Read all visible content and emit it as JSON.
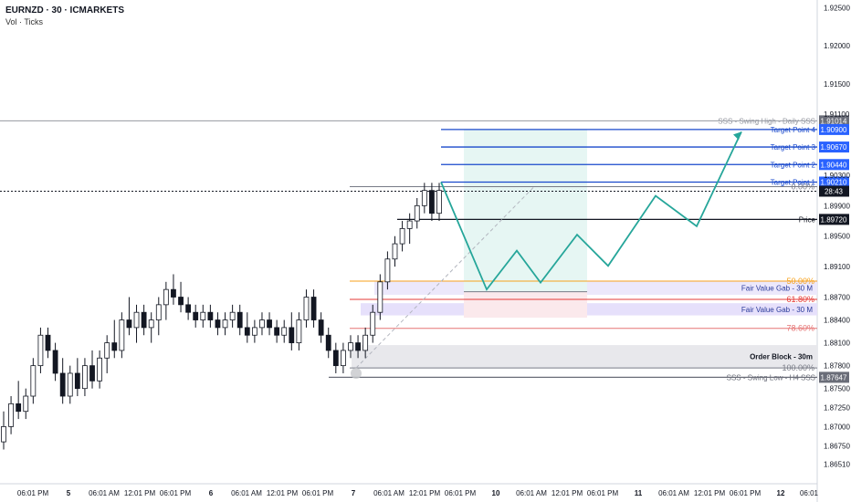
{
  "header": {
    "symbol_line": "EURNZD · 30 · ICMARKETS",
    "indicator_line": "Vol · Ticks"
  },
  "chart_data": {
    "type": "line",
    "title": "EURNZD · 30 · ICMARKETS",
    "ylim": [
      1.8625,
      1.926
    ],
    "price_ticks": [
      "1.92500",
      "1.92000",
      "1.91500",
      "1.91100",
      "1.90300",
      "1.89900",
      "1.89500",
      "1.89100",
      "1.88700",
      "1.88400",
      "1.88100",
      "1.87800",
      "1.87500",
      "1.87250",
      "1.87000",
      "1.86750",
      "1.86510"
    ],
    "time_ticks": [
      "06:01 PM",
      "5",
      "06:01 AM",
      "12:01 PM",
      "06:01 PM",
      "6",
      "06:01 AM",
      "12:01 PM",
      "06:01 PM",
      "7",
      "06:01 AM",
      "12:01 PM",
      "06:01 PM",
      "10",
      "06:01 AM",
      "12:01 PM",
      "06:01 PM",
      "11",
      "06:01 AM",
      "12:01 PM",
      "06:01 PM",
      "12",
      "06:01"
    ],
    "levels": [
      {
        "label": "SSS - Swing High - Daily SSS",
        "price_tag": "1.91014",
        "price": 1.91014,
        "color": "#9598a1",
        "tag_color": "#6a6d78"
      },
      {
        "label": "Target Point 4",
        "price_tag": "1.90900",
        "price": 1.909,
        "color": "#1848cc",
        "tag_color": "#2962ff"
      },
      {
        "label": "Target Point 3",
        "price_tag": "1.90670",
        "price": 1.9067,
        "color": "#1848cc",
        "tag_color": "#2962ff"
      },
      {
        "label": "Target Point 2",
        "price_tag": "1.90440",
        "price": 1.9044,
        "color": "#1848cc",
        "tag_color": "#2962ff"
      },
      {
        "label": "Target Point 1",
        "price_tag": "1.90210",
        "price": 1.9021,
        "color": "#1848cc",
        "tag_color": "#2962ff"
      },
      {
        "label": "Price",
        "price_tag": "1.89720",
        "price": 1.8972,
        "color": "#131722",
        "tag_color": "#131722"
      },
      {
        "label": "SSS - Swing Low - H4 SSS",
        "price_tag": "1.87647",
        "price": 1.87647,
        "color": "#6a6d78",
        "tag_color": "#6a6d78"
      }
    ],
    "current_price": {
      "price": 1.9009,
      "countdown": "28:43"
    },
    "fib": [
      {
        "label": "0.00%",
        "price": 1.9015,
        "color": "#787b86"
      },
      {
        "label": "50.00%",
        "price": 1.8891,
        "color": "#f7a21b"
      },
      {
        "label": "61.80%",
        "price": 1.8867,
        "color": "#e53935"
      },
      {
        "label": "78.60%",
        "price": 1.8829,
        "color": "#e57373"
      },
      {
        "label": "100.00%",
        "price": 1.8777,
        "color": "#787b86"
      }
    ],
    "zones": [
      {
        "label": "Fair Value Gab - 30 M",
        "top": 1.8891,
        "bottom": 1.8873,
        "color": "#ece8fb",
        "text_color": "#2a3b9b"
      },
      {
        "label": "Fair Value Gab - 30 M",
        "top": 1.8862,
        "bottom": 1.8846,
        "color": "#e6e0fb",
        "text_color": "#2a3b9b"
      },
      {
        "label": "Order Block - 30m",
        "top": 1.8807,
        "bottom": 1.8777,
        "color": "#e8e8ec",
        "text_color": "#131722"
      }
    ],
    "projection_path": [
      1.9021,
      1.888,
      1.8931,
      1.8889,
      1.8952,
      1.8911,
      1.9003,
      1.8963,
      1.9087
    ],
    "candles": [
      {
        "o": 1.868,
        "h": 1.872,
        "l": 1.867,
        "c": 1.87
      },
      {
        "o": 1.87,
        "h": 1.874,
        "l": 1.869,
        "c": 1.873
      },
      {
        "o": 1.873,
        "h": 1.876,
        "l": 1.871,
        "c": 1.872
      },
      {
        "o": 1.872,
        "h": 1.875,
        "l": 1.871,
        "c": 1.874
      },
      {
        "o": 1.874,
        "h": 1.879,
        "l": 1.873,
        "c": 1.878
      },
      {
        "o": 1.878,
        "h": 1.883,
        "l": 1.877,
        "c": 1.882
      },
      {
        "o": 1.882,
        "h": 1.883,
        "l": 1.879,
        "c": 1.88
      },
      {
        "o": 1.88,
        "h": 1.881,
        "l": 1.876,
        "c": 1.877
      },
      {
        "o": 1.877,
        "h": 1.879,
        "l": 1.873,
        "c": 1.874
      },
      {
        "o": 1.874,
        "h": 1.878,
        "l": 1.873,
        "c": 1.877
      },
      {
        "o": 1.877,
        "h": 1.879,
        "l": 1.874,
        "c": 1.875
      },
      {
        "o": 1.875,
        "h": 1.879,
        "l": 1.874,
        "c": 1.878
      },
      {
        "o": 1.878,
        "h": 1.88,
        "l": 1.875,
        "c": 1.876
      },
      {
        "o": 1.876,
        "h": 1.88,
        "l": 1.875,
        "c": 1.879
      },
      {
        "o": 1.879,
        "h": 1.882,
        "l": 1.877,
        "c": 1.881
      },
      {
        "o": 1.881,
        "h": 1.884,
        "l": 1.879,
        "c": 1.88
      },
      {
        "o": 1.88,
        "h": 1.885,
        "l": 1.879,
        "c": 1.884
      },
      {
        "o": 1.884,
        "h": 1.887,
        "l": 1.882,
        "c": 1.883
      },
      {
        "o": 1.883,
        "h": 1.886,
        "l": 1.881,
        "c": 1.885
      },
      {
        "o": 1.885,
        "h": 1.886,
        "l": 1.882,
        "c": 1.883
      },
      {
        "o": 1.883,
        "h": 1.885,
        "l": 1.881,
        "c": 1.884
      },
      {
        "o": 1.884,
        "h": 1.887,
        "l": 1.882,
        "c": 1.886
      },
      {
        "o": 1.886,
        "h": 1.889,
        "l": 1.884,
        "c": 1.888
      },
      {
        "o": 1.888,
        "h": 1.89,
        "l": 1.886,
        "c": 1.887
      },
      {
        "o": 1.887,
        "h": 1.889,
        "l": 1.885,
        "c": 1.886
      },
      {
        "o": 1.886,
        "h": 1.887,
        "l": 1.884,
        "c": 1.885
      },
      {
        "o": 1.885,
        "h": 1.886,
        "l": 1.883,
        "c": 1.884
      },
      {
        "o": 1.884,
        "h": 1.886,
        "l": 1.883,
        "c": 1.885
      },
      {
        "o": 1.885,
        "h": 1.886,
        "l": 1.883,
        "c": 1.884
      },
      {
        "o": 1.884,
        "h": 1.885,
        "l": 1.882,
        "c": 1.883
      },
      {
        "o": 1.883,
        "h": 1.885,
        "l": 1.882,
        "c": 1.884
      },
      {
        "o": 1.884,
        "h": 1.886,
        "l": 1.883,
        "c": 1.885
      },
      {
        "o": 1.885,
        "h": 1.886,
        "l": 1.882,
        "c": 1.883
      },
      {
        "o": 1.883,
        "h": 1.885,
        "l": 1.881,
        "c": 1.882
      },
      {
        "o": 1.882,
        "h": 1.884,
        "l": 1.881,
        "c": 1.883
      },
      {
        "o": 1.883,
        "h": 1.885,
        "l": 1.882,
        "c": 1.884
      },
      {
        "o": 1.884,
        "h": 1.885,
        "l": 1.882,
        "c": 1.883
      },
      {
        "o": 1.883,
        "h": 1.884,
        "l": 1.881,
        "c": 1.882
      },
      {
        "o": 1.882,
        "h": 1.884,
        "l": 1.881,
        "c": 1.883
      },
      {
        "o": 1.883,
        "h": 1.885,
        "l": 1.88,
        "c": 1.881
      },
      {
        "o": 1.881,
        "h": 1.885,
        "l": 1.88,
        "c": 1.884
      },
      {
        "o": 1.884,
        "h": 1.888,
        "l": 1.883,
        "c": 1.887
      },
      {
        "o": 1.887,
        "h": 1.888,
        "l": 1.883,
        "c": 1.884
      },
      {
        "o": 1.884,
        "h": 1.885,
        "l": 1.881,
        "c": 1.882
      },
      {
        "o": 1.882,
        "h": 1.883,
        "l": 1.879,
        "c": 1.88
      },
      {
        "o": 1.88,
        "h": 1.881,
        "l": 1.877,
        "c": 1.878
      },
      {
        "o": 1.878,
        "h": 1.881,
        "l": 1.877,
        "c": 1.88
      },
      {
        "o": 1.88,
        "h": 1.882,
        "l": 1.879,
        "c": 1.881
      },
      {
        "o": 1.881,
        "h": 1.882,
        "l": 1.879,
        "c": 1.88
      },
      {
        "o": 1.88,
        "h": 1.883,
        "l": 1.879,
        "c": 1.882
      },
      {
        "o": 1.882,
        "h": 1.886,
        "l": 1.881,
        "c": 1.885
      },
      {
        "o": 1.885,
        "h": 1.89,
        "l": 1.884,
        "c": 1.889
      },
      {
        "o": 1.889,
        "h": 1.893,
        "l": 1.888,
        "c": 1.892
      },
      {
        "o": 1.892,
        "h": 1.895,
        "l": 1.891,
        "c": 1.894
      },
      {
        "o": 1.894,
        "h": 1.897,
        "l": 1.893,
        "c": 1.896
      },
      {
        "o": 1.896,
        "h": 1.898,
        "l": 1.894,
        "c": 1.897
      },
      {
        "o": 1.897,
        "h": 1.9,
        "l": 1.896,
        "c": 1.899
      },
      {
        "o": 1.899,
        "h": 1.902,
        "l": 1.898,
        "c": 1.901
      },
      {
        "o": 1.901,
        "h": 1.902,
        "l": 1.897,
        "c": 1.898
      },
      {
        "o": 1.898,
        "h": 1.902,
        "l": 1.897,
        "c": 1.901
      }
    ]
  }
}
